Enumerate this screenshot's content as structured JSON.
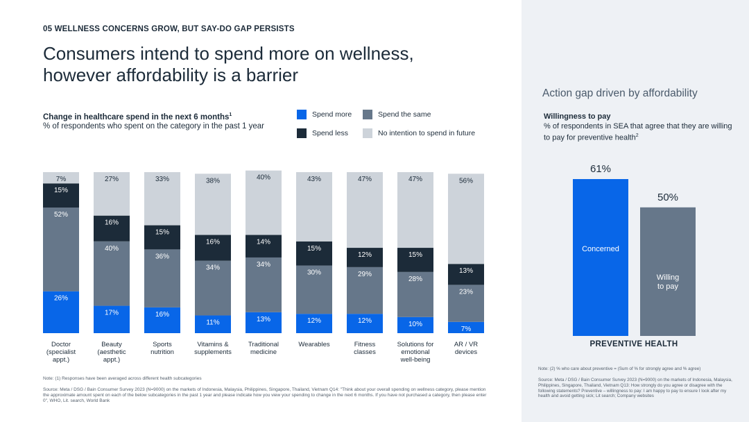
{
  "header": {
    "section_tag": "05 WELLNESS CONCERNS GROW, BUT SAY-DO GAP PERSISTS",
    "title_line1": "Consumers intend to spend more on wellness,",
    "title_line2": "however affordability is a barrier"
  },
  "colors": {
    "spend_more": "#0866e8",
    "spend_same": "#66778a",
    "spend_less": "#1c2b39",
    "no_intention": "#cdd3da",
    "concerned": "#0866e8",
    "willing": "#66778a"
  },
  "chart_data": [
    {
      "type": "bar",
      "stacked": true,
      "title": "Change in healthcare spend in the next 6 months",
      "title_sup": "1",
      "subtitle": "% of respondents who spent on the category in the past 1 year",
      "categories": [
        "Doctor\n(specialist\nappt.)",
        "Beauty\n(aesthetic\nappt.)",
        "Sports\nnutrition",
        "Vitamins &\nsupplements",
        "Traditional\nmedicine",
        "Wearables",
        "Fitness\nclasses",
        "Solutions for\nemotional\nwell-being",
        "AR / VR\ndevices"
      ],
      "series": [
        {
          "name": "Spend more",
          "key": "spend_more",
          "values": [
            26,
            17,
            16,
            11,
            13,
            12,
            12,
            10,
            7
          ]
        },
        {
          "name": "Spend the same",
          "key": "spend_same",
          "values": [
            52,
            40,
            36,
            34,
            34,
            30,
            29,
            28,
            23
          ]
        },
        {
          "name": "Spend less",
          "key": "spend_less",
          "values": [
            15,
            16,
            15,
            16,
            14,
            15,
            12,
            15,
            13
          ]
        },
        {
          "name": "No intention to spend in future",
          "key": "no_intention",
          "values": [
            7,
            27,
            33,
            38,
            40,
            43,
            47,
            47,
            56
          ]
        }
      ],
      "totals": [
        100,
        100,
        100,
        99,
        101,
        100,
        100,
        100,
        99
      ],
      "ylim": [
        0,
        100
      ],
      "legend_position": "top-right",
      "legend": [
        {
          "label": "Spend more",
          "key": "spend_more"
        },
        {
          "label": "Spend the same",
          "key": "spend_same"
        },
        {
          "label": "Spend less",
          "key": "spend_less"
        },
        {
          "label": "No intention to spend in future",
          "key": "no_intention"
        }
      ]
    },
    {
      "type": "bar",
      "title": "Willingness to pay",
      "subtitle": "% of respondents in SEA that agree that they are willing to pay for preventive health",
      "subtitle_sup": "2",
      "categories": [
        "Concerned",
        "Willing to pay"
      ],
      "category_lines": [
        [
          "Concerned"
        ],
        [
          "Willing",
          "to pay"
        ]
      ],
      "values": [
        61,
        50
      ],
      "value_labels": [
        "61%",
        "50%"
      ],
      "xlabel": "PREVENTIVE HEALTH",
      "ylim": [
        0,
        61
      ]
    }
  ],
  "notes": {
    "left_note": "Note: (1) Responses have been averaged across different health subcategories",
    "left_source": "Source: Meta / DSG / Bain Consumer Survey 2023 (N=9000) on the markets of Indonesia, Malaysia, Philippines, Singapore, Thailand, Vietnam Q14: \"Think about your overall spending on wellness category, please mention the approximate amount spent on each of the below subcategories in the past 1 year and please indicate how you view your spending to change in the next 6 months. If you have not purchased a category, then please enter 0\", WHO, Lit. search, World Bank",
    "right_heading": "Action gap driven by affordability",
    "right_note": "Note: (2) % who care about preventive = (Sum of % for strongly agree and % agree)",
    "right_source": "Source: Meta / DSG / Bain Consumer Survey 2023 (N=9000) on the markets of Indonesia, Malaysia, Philippines, Singapore, Thailand, Vietnam Q13: How strongly do you agree or disagree with the following statements? Preventive – willingness to pay: I am happy to pay to ensure I look after my health and avoid getting sick; Lit search; Company websites"
  }
}
